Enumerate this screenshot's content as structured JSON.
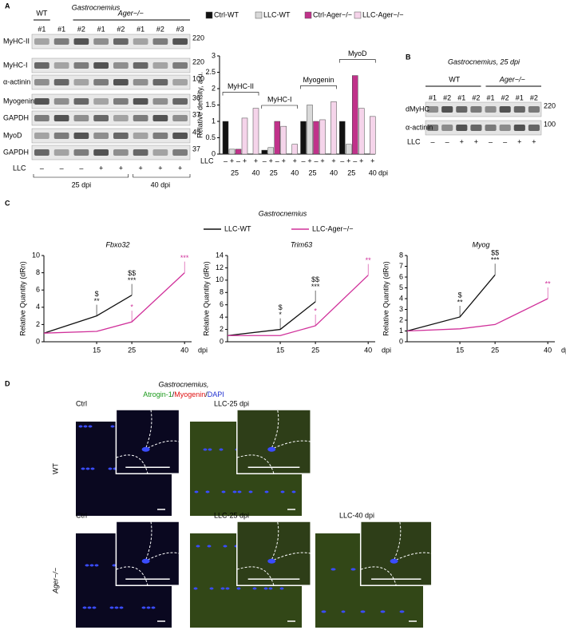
{
  "panel_labels": [
    "A",
    "B",
    "C",
    "D"
  ],
  "blot_A": {
    "title": "Gastrocnemius",
    "groups": [
      "WT",
      "Ager−/−"
    ],
    "lanes": [
      "#1",
      "#1",
      "#2",
      "#1",
      "#2",
      "#1",
      "#2",
      "#3"
    ],
    "rows": [
      "MyHC-II",
      "MyHC-I",
      "α-actinin",
      "Myogenin",
      "GAPDH",
      "MyoD",
      "GAPDH"
    ],
    "mw": [
      220,
      220,
      100,
      36,
      37,
      45,
      37
    ],
    "llc_label": "LLC",
    "llc": [
      "–",
      "–",
      "–",
      "+",
      "+",
      "+",
      "+",
      "+"
    ],
    "timepoints": [
      "25 dpi",
      "40 dpi"
    ]
  },
  "blot_B": {
    "title": "Gastrocnemius, 25 dpi",
    "groups": [
      "WT",
      "Ager−/−"
    ],
    "lanes": [
      "#1",
      "#2",
      "#1",
      "#2",
      "#1",
      "#2",
      "#1",
      "#2"
    ],
    "rows": [
      "dMyHC",
      "α-actinin"
    ],
    "mw": [
      220,
      100
    ],
    "llc_label": "LLC",
    "llc": [
      "–",
      "–",
      "+",
      "+",
      "–",
      "–",
      "+",
      "+"
    ]
  },
  "panel_C": {
    "title": "Gastrocnemius",
    "legend": [
      {
        "name": "LLC-WT",
        "color": "#111111"
      },
      {
        "name": "LLC-Ager−/−",
        "color": "#d0309a"
      }
    ]
  },
  "panel_D": {
    "title": "Gastrocnemius,",
    "stains": [
      "Atrogin-1",
      "/",
      "Myogenin",
      "/",
      "DAPI"
    ],
    "stain_colors": [
      "#1a9a1a",
      "#000000",
      "#e01010",
      "#000000",
      "#2030d0"
    ],
    "rows": [
      "WT",
      "Ager−/−"
    ],
    "images": [
      [
        "Ctrl",
        "LLC-25 dpi"
      ],
      [
        "Ctrl",
        "LLC-25 dpi",
        "LLC-40 dpi"
      ]
    ]
  },
  "chart_data": [
    {
      "type": "bar",
      "ylabel": "Relative density, a.u.",
      "categories": [
        "MyHC-II",
        "MyHC-I",
        "Myogenin",
        "MyoD"
      ],
      "series": [
        {
          "name": "Ctrl-WT",
          "color": "#111111",
          "values": [
            1.0,
            0.12,
            1.0,
            1.0
          ]
        },
        {
          "name": "LLC-WT",
          "color": "#d9d9d9",
          "values": [
            0.15,
            0.2,
            1.5,
            0.3
          ]
        },
        {
          "name": "Ctrl-Ager−/−",
          "color": "#c0328a",
          "values": [
            0.15,
            1.0,
            1.0,
            2.4
          ]
        },
        {
          "name": "LLC-Ager−/−",
          "color": "#f5d4ea",
          "values": [
            1.1,
            0.85,
            1.05,
            1.4
          ],
          "values_40": [
            1.4,
            0.3,
            1.6,
            1.15
          ]
        }
      ],
      "x_label": "LLC",
      "llc": [
        "–",
        "+",
        "–",
        "+",
        "+"
      ],
      "timepoints": [
        "25",
        "40"
      ],
      "x_unit": "dpi",
      "ylim": [
        0,
        3
      ],
      "yticks": [
        0,
        0.5,
        1,
        1.5,
        2,
        2.5,
        3
      ]
    },
    {
      "type": "line",
      "title": "Fbxo32",
      "ylabel": "Relative Quantity (dRn)",
      "x": [
        0,
        15,
        25,
        40
      ],
      "xlim": [
        0,
        42
      ],
      "xticks": [
        15,
        25,
        40
      ],
      "x_unit": "dpi",
      "ylim": [
        0,
        10
      ],
      "yticks": [
        0,
        2,
        4,
        6,
        8,
        10
      ],
      "series": [
        {
          "color": "#111111",
          "values": [
            1,
            3,
            5.4,
            null
          ],
          "significance": [
            null,
            [
              "$",
              "**"
            ],
            [
              "$$",
              "***"
            ],
            null
          ]
        },
        {
          "color": "#d0309a",
          "values": [
            1,
            1.2,
            2.3,
            8
          ],
          "significance": [
            null,
            null,
            [
              "*"
            ],
            [
              "***"
            ]
          ]
        }
      ]
    },
    {
      "type": "line",
      "title": "Trim63",
      "ylabel": "Relative Quantity (dRn)",
      "x": [
        0,
        15,
        25,
        40
      ],
      "xlim": [
        0,
        42
      ],
      "xticks": [
        15,
        25,
        40
      ],
      "x_unit": "dpi",
      "ylim": [
        0,
        14
      ],
      "yticks": [
        0,
        2,
        4,
        6,
        8,
        10,
        12,
        14
      ],
      "series": [
        {
          "color": "#111111",
          "values": [
            1,
            2,
            6.5,
            null
          ],
          "significance": [
            null,
            [
              "$",
              "*"
            ],
            [
              "$$",
              "***"
            ],
            null
          ]
        },
        {
          "color": "#d0309a",
          "values": [
            1,
            1,
            2.6,
            10.8
          ],
          "significance": [
            null,
            null,
            [
              "*"
            ],
            [
              "**"
            ]
          ]
        }
      ]
    },
    {
      "type": "line",
      "title": "Myog",
      "ylabel": "Relative Quantity (dRn)",
      "x": [
        0,
        15,
        25,
        40
      ],
      "xlim": [
        0,
        42
      ],
      "xticks": [
        15,
        25,
        40
      ],
      "x_unit": "dpi",
      "ylim": [
        0,
        8
      ],
      "yticks": [
        0,
        1,
        2,
        3,
        4,
        5,
        6,
        7,
        8
      ],
      "series": [
        {
          "color": "#111111",
          "values": [
            1,
            2.3,
            6.2,
            null
          ],
          "significance": [
            null,
            [
              "$",
              "**"
            ],
            [
              "$$",
              "***"
            ],
            null
          ]
        },
        {
          "color": "#d0309a",
          "values": [
            1,
            1.2,
            1.6,
            4
          ],
          "significance": [
            null,
            null,
            null,
            [
              "**"
            ]
          ]
        }
      ]
    }
  ]
}
